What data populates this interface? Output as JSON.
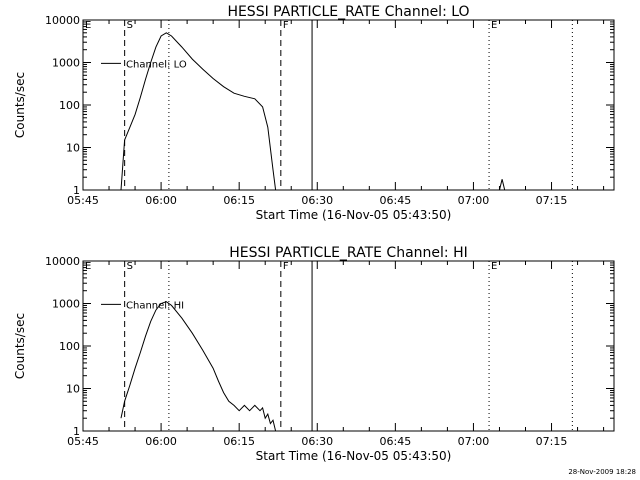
{
  "chart_data": [
    {
      "type": "line",
      "title": "HESSI PARTICLE_RATE Channel: LO",
      "xlabel": "Start Time (16-Nov-05 05:43:50)",
      "ylabel": "Counts/sec",
      "yscale": "log",
      "ylim": [
        1,
        10000
      ],
      "xlim": [
        "05:45",
        "07:27"
      ],
      "x_ticks": [
        "05:45",
        "06:00",
        "06:15",
        "06:30",
        "06:45",
        "07:00",
        "07:15"
      ],
      "y_ticks": [
        "1",
        "10",
        "100",
        "1000",
        "10000"
      ],
      "legend": "Channel: LO",
      "markers": [
        {
          "label": "E",
          "time": "05:45"
        },
        {
          "label": "S",
          "time": "05:53"
        },
        {
          "label": "F",
          "time": "06:23"
        },
        {
          "label": "E",
          "time": "07:03"
        }
      ],
      "vlines": [
        {
          "time": "05:53",
          "style": "dashed"
        },
        {
          "time": "06:01.5",
          "style": "dotted"
        },
        {
          "time": "06:23",
          "style": "dashed"
        },
        {
          "time": "06:29",
          "style": "solid"
        },
        {
          "time": "07:03",
          "style": "dotted"
        },
        {
          "time": "07:19",
          "style": "dotted"
        }
      ],
      "series": [
        {
          "name": "Channel: LO",
          "points": [
            [
              "05:52.3",
              1
            ],
            [
              "05:53",
              15
            ],
            [
              "05:54",
              30
            ],
            [
              "05:55",
              60
            ],
            [
              "05:56",
              150
            ],
            [
              "05:57",
              400
            ],
            [
              "05:58",
              1000
            ],
            [
              "05:59",
              2300
            ],
            [
              "06:00",
              4200
            ],
            [
              "06:01",
              5000
            ],
            [
              "06:02",
              4200
            ],
            [
              "06:04",
              2300
            ],
            [
              "06:06",
              1200
            ],
            [
              "06:08",
              700
            ],
            [
              "06:10",
              420
            ],
            [
              "06:12",
              270
            ],
            [
              "06:14",
              190
            ],
            [
              "06:16",
              160
            ],
            [
              "06:18",
              140
            ],
            [
              "06:19.5",
              90
            ],
            [
              "06:20.5",
              30
            ],
            [
              "06:21.5",
              3
            ],
            [
              "06:22",
              1
            ]
          ],
          "extra_points": [
            [
              "07:05",
              1
            ],
            [
              "07:05.5",
              1.8
            ],
            [
              "07:06",
              1
            ]
          ]
        }
      ]
    },
    {
      "type": "line",
      "title": "HESSI PARTICLE_RATE Channel: HI",
      "xlabel": "Start Time (16-Nov-05 05:43:50)",
      "ylabel": "Counts/sec",
      "yscale": "log",
      "ylim": [
        1,
        10000
      ],
      "xlim": [
        "05:45",
        "07:27"
      ],
      "x_ticks": [
        "05:45",
        "06:00",
        "06:15",
        "06:30",
        "06:45",
        "07:00",
        "07:15"
      ],
      "y_ticks": [
        "1",
        "10",
        "100",
        "1000",
        "10000"
      ],
      "legend": "Channel: HI",
      "markers": [
        {
          "label": "E",
          "time": "05:45"
        },
        {
          "label": "S",
          "time": "05:53"
        },
        {
          "label": "F",
          "time": "06:23"
        },
        {
          "label": "E",
          "time": "07:03"
        }
      ],
      "vlines": [
        {
          "time": "05:53",
          "style": "dashed"
        },
        {
          "time": "06:01.5",
          "style": "dotted"
        },
        {
          "time": "06:23",
          "style": "dashed"
        },
        {
          "time": "06:29",
          "style": "solid"
        },
        {
          "time": "07:03",
          "style": "dotted"
        },
        {
          "time": "07:19",
          "style": "dotted"
        }
      ],
      "series": [
        {
          "name": "Channel: HI",
          "points": [
            [
              "05:52.3",
              2
            ],
            [
              "05:53",
              5
            ],
            [
              "05:54",
              12
            ],
            [
              "05:55",
              30
            ],
            [
              "05:56",
              70
            ],
            [
              "05:57",
              170
            ],
            [
              "05:58",
              380
            ],
            [
              "05:59",
              700
            ],
            [
              "06:00",
              1000
            ],
            [
              "06:01",
              1100
            ],
            [
              "06:02",
              900
            ],
            [
              "06:04",
              450
            ],
            [
              "06:06",
              200
            ],
            [
              "06:08",
              80
            ],
            [
              "06:10",
              30
            ],
            [
              "06:11",
              15
            ],
            [
              "06:12",
              8
            ],
            [
              "06:13",
              5
            ],
            [
              "06:14",
              4
            ],
            [
              "06:15",
              3
            ],
            [
              "06:16",
              4
            ],
            [
              "06:17",
              3
            ],
            [
              "06:18",
              4
            ],
            [
              "06:19",
              3
            ],
            [
              "06:19.5",
              3.5
            ],
            [
              "06:20",
              2
            ],
            [
              "06:20.5",
              2.5
            ],
            [
              "06:21",
              1.5
            ],
            [
              "06:21.5",
              1.8
            ],
            [
              "06:22",
              1
            ]
          ]
        }
      ]
    }
  ],
  "timestamp": "28-Nov-2009 18:28"
}
